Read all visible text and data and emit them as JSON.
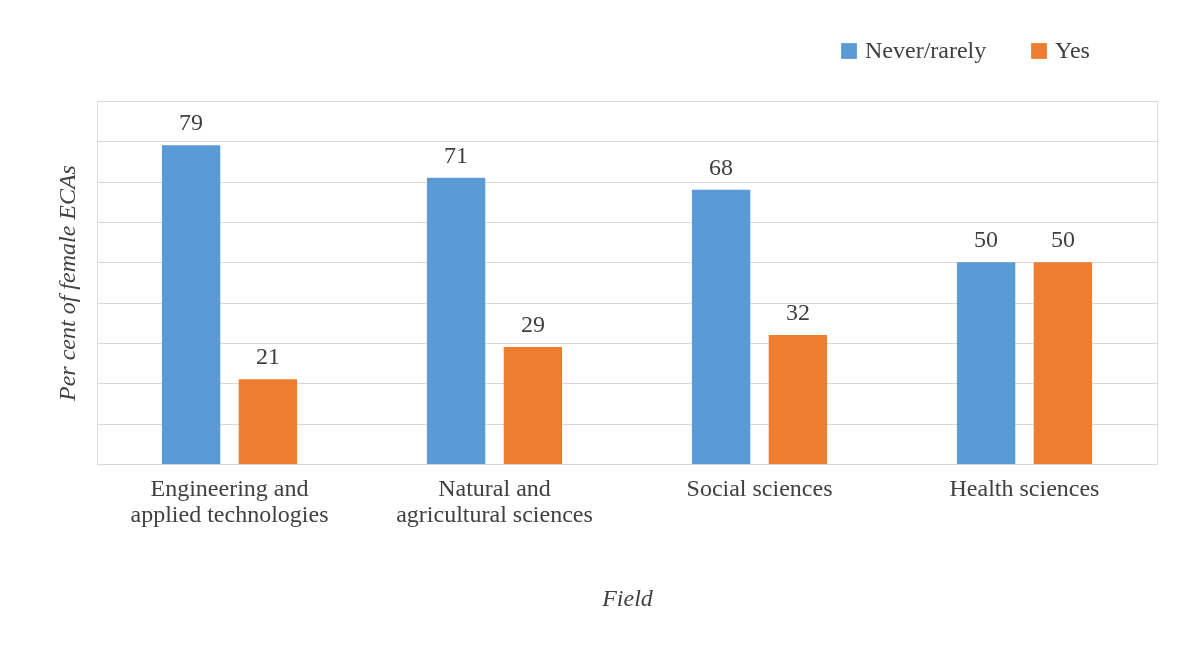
{
  "chart_data": {
    "type": "bar",
    "xlabel": "Field",
    "ylabel": "Per cent of female ECAs",
    "categories": [
      "Engineering and applied technologies",
      "Natural and agricultural sciences",
      "Social sciences",
      "Health sciences"
    ],
    "series": [
      {
        "name": "Never/rarely",
        "color": "#5b9bd5",
        "values": [
          79,
          71,
          68,
          50
        ]
      },
      {
        "name": "Yes",
        "color": "#ed7d31",
        "values": [
          21,
          29,
          32,
          50
        ]
      }
    ],
    "ylim": [
      0,
      90
    ],
    "yticks": [
      {
        "value": 0,
        "label": null
      },
      {
        "value": 10,
        "label": null
      },
      {
        "value": 20,
        "label": null
      },
      {
        "value": 30,
        "label": null
      },
      {
        "value": 40,
        "label": null
      },
      {
        "value": 50,
        "label": null
      },
      {
        "value": 60,
        "label": null
      },
      {
        "value": 70,
        "label": null
      },
      {
        "value": 80,
        "label": null
      },
      {
        "value": 90,
        "label": null
      }
    ],
    "grid": "y",
    "legend": "top right",
    "tick_labels": "x",
    "data_labels": true
  }
}
